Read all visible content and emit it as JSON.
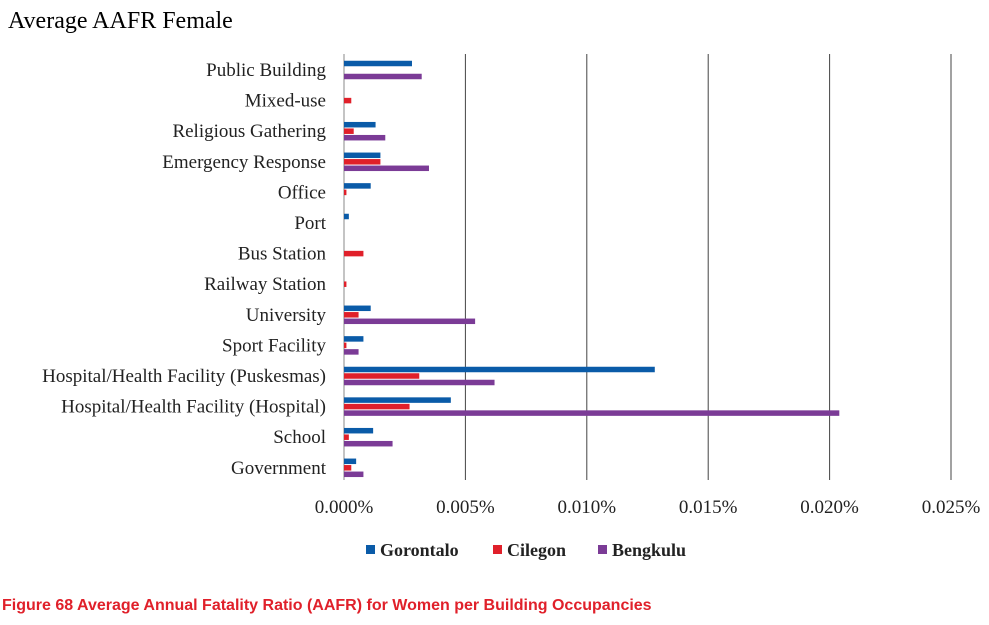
{
  "caption": "Figure 68 Average Annual Fatality Ratio (AAFR) for Women per Building Occupancies",
  "colors": {
    "Gorontalo": "#0a5ba8",
    "Cilegon": "#e0202a",
    "Bengkulu": "#7b3b96",
    "gridline": "#444444",
    "axis": "#888888"
  },
  "chart_data": {
    "type": "bar",
    "orientation": "horizontal",
    "title": "Average AAFR Female",
    "xlabel": "",
    "ylabel": "",
    "categories": [
      "Public Building",
      "Mixed-use",
      "Religious Gathering",
      "Emergency Response",
      "Office",
      "Port",
      "Bus Station",
      "Railway Station",
      "University",
      "Sport Facility",
      "Hospital/Health Facility (Puskesmas)",
      "Hospital/Health Facility (Hospital)",
      "School",
      "Government"
    ],
    "series": [
      {
        "name": "Gorontalo",
        "values": [
          0.0028,
          0,
          0.0013,
          0.0015,
          0.0011,
          0.0002,
          0,
          0,
          0.0011,
          0.0008,
          0.0128,
          0.0044,
          0.0012,
          0.0005
        ]
      },
      {
        "name": "Cilegon",
        "values": [
          0,
          0.0003,
          0.0004,
          0.0015,
          0.0001,
          0,
          0.0008,
          0.0001,
          0.0006,
          0.0001,
          0.0031,
          0.0027,
          0.0002,
          0.0003
        ]
      },
      {
        "name": "Bengkulu",
        "values": [
          0.0032,
          0,
          0.0017,
          0.0035,
          0,
          0,
          0,
          0,
          0.0054,
          0.0006,
          0.0062,
          0.0204,
          0.002,
          0.0008
        ]
      }
    ],
    "xlim": [
      0,
      0.025
    ],
    "xticks": [
      0,
      0.005,
      0.01,
      0.015,
      0.02,
      0.025
    ],
    "xtick_labels": [
      "0.000%",
      "0.005%",
      "0.010%",
      "0.015%",
      "0.020%",
      "0.025%"
    ],
    "grid": "vertical",
    "legend_position": "bottom"
  }
}
